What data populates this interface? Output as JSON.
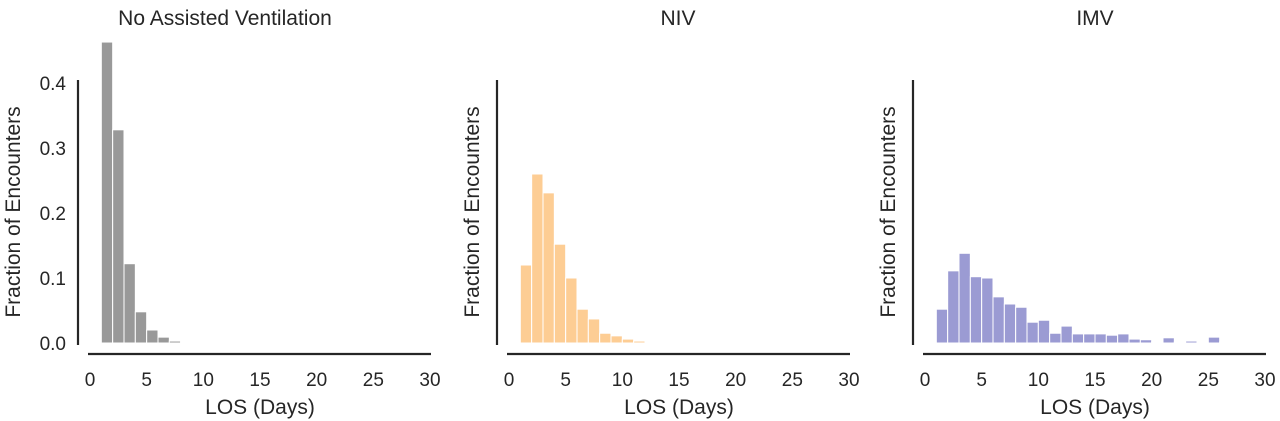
{
  "figure": {
    "shared_ylabel": "Fraction of Encounters",
    "shared_xlabel": "LOS (Days)"
  },
  "chart_data": [
    {
      "type": "bar",
      "subtype": "histogram",
      "title": "No Assisted Ventilation",
      "xlabel": "LOS (Days)",
      "ylabel": "Fraction of Encounters",
      "xlim": [
        0,
        30
      ],
      "ylim": [
        0,
        0.47
      ],
      "xticks": [
        "0",
        "5",
        "10",
        "15",
        "20",
        "25",
        "30"
      ],
      "xtick_values": [
        0,
        5,
        10,
        15,
        20,
        25,
        30
      ],
      "yticks": [
        "0.0",
        "0.1",
        "0.2",
        "0.3",
        "0.4"
      ],
      "ytick_values": [
        0.0,
        0.1,
        0.2,
        0.3,
        0.4
      ],
      "show_yticks": true,
      "color": "#999999",
      "bin_start": 1,
      "bin_width": 1,
      "values": [
        0.463,
        0.328,
        0.122,
        0.048,
        0.02,
        0.009,
        0.003,
        0.001,
        0.001
      ],
      "grid": false
    },
    {
      "type": "bar",
      "subtype": "histogram",
      "title": "NIV",
      "xlabel": "LOS (Days)",
      "ylabel": "Fraction of Encounters",
      "xlim": [
        0,
        30
      ],
      "ylim": [
        0,
        0.47
      ],
      "xticks": [
        "0",
        "5",
        "10",
        "15",
        "20",
        "25",
        "30"
      ],
      "xtick_values": [
        0,
        5,
        10,
        15,
        20,
        25,
        30
      ],
      "yticks": [],
      "ytick_values": [],
      "show_yticks": false,
      "color": "#fdcd94",
      "bin_start": 1,
      "bin_width": 1,
      "values": [
        0.12,
        0.26,
        0.231,
        0.152,
        0.1,
        0.052,
        0.037,
        0.015,
        0.011,
        0.006,
        0.003,
        0.001
      ],
      "grid": false
    },
    {
      "type": "bar",
      "subtype": "histogram",
      "title": "IMV",
      "xlabel": "LOS (Days)",
      "ylabel": "Fraction of Encounters",
      "xlim": [
        0,
        30
      ],
      "ylim": [
        0,
        0.47
      ],
      "xticks": [
        "0",
        "5",
        "10",
        "15",
        "20",
        "25",
        "30"
      ],
      "xtick_values": [
        0,
        5,
        10,
        15,
        20,
        25,
        30
      ],
      "yticks": [],
      "ytick_values": [],
      "show_yticks": false,
      "color": "#9b9bd3",
      "bin_start": 1,
      "bin_width": 1,
      "values": [
        0.052,
        0.111,
        0.138,
        0.102,
        0.1,
        0.071,
        0.06,
        0.055,
        0.032,
        0.035,
        0.015,
        0.026,
        0.014,
        0.014,
        0.014,
        0.012,
        0.014,
        0.006,
        0.005,
        0.001,
        0.008,
        0.001,
        0.003,
        0.001,
        0.009,
        0.001,
        0.0,
        0.001,
        0.001
      ],
      "grid": false
    }
  ]
}
